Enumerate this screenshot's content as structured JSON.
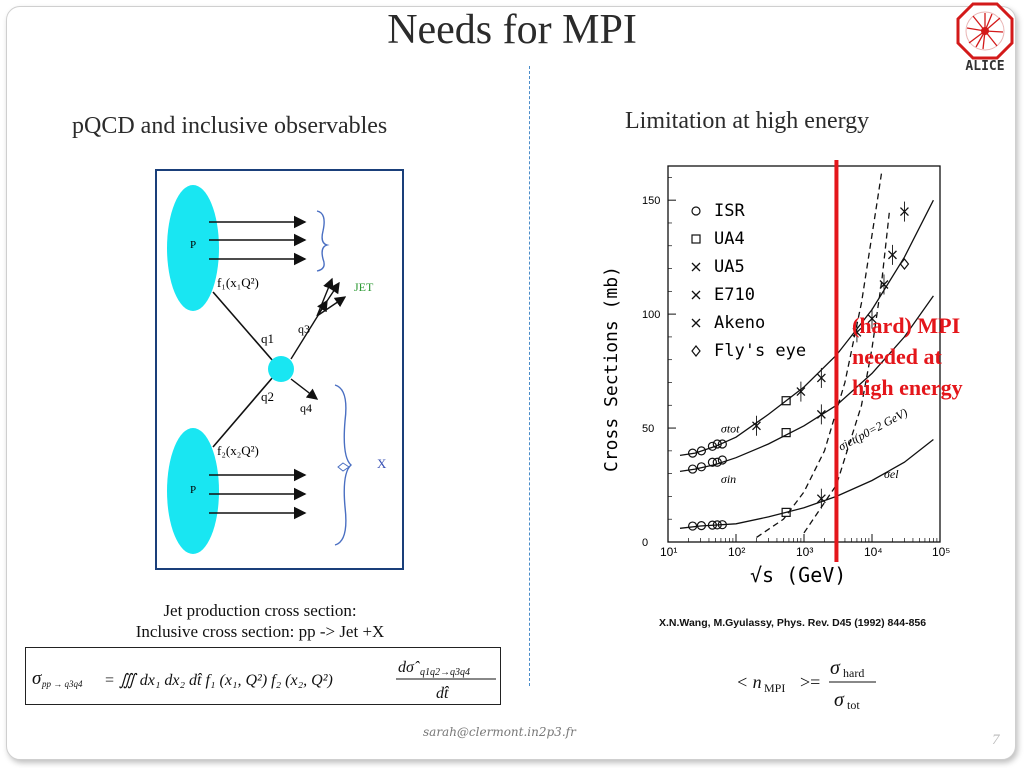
{
  "slide": {
    "title": "Needs for MPI",
    "logo_text": "ALICE",
    "left_heading": "pQCD and inclusive observables",
    "right_heading": "Limitation at high energy",
    "caption_line1": "Jet production cross section:",
    "caption_line2": "Inclusive cross section: pp -> Jet +X",
    "reference": "X.N.Wang, M.Gyulassy, Phys. Rev. D45 (1992) 844-856",
    "mpi_note": [
      "(hard) MPI",
      "needed at",
      "high energy"
    ],
    "email": "sarah@clermont.in2p3.fr",
    "page_number": "7",
    "accent_color": "#e4161b",
    "frame_color": "#1a3f7a"
  },
  "diagram": {
    "proton_label": "P",
    "pdf1": "f₁(x₁Q²)",
    "pdf2": "f₂(x₂Q²)",
    "q1": "q1",
    "q2": "q2",
    "q3": "q3",
    "q4": "q4",
    "jet": "JET",
    "x": "X"
  },
  "formula": {
    "sigma_sub": "pp → q3q4",
    "body": "= ∭ dx₁ dx₂ dt̂ f₁ (x₁, Q²) f₂ (x₂, Q²)",
    "num": "dσ̂",
    "num_sub": "q1q2→q3q4",
    "den": "dt̂"
  },
  "nmpi": {
    "lhs": "< n",
    "lhs_sub": "MPI",
    "rel": ">=",
    "num_sub": "hard",
    "den_sub": "tot"
  },
  "chart_data": {
    "type": "scatter",
    "xlabel": "√s  (GeV)",
    "ylabel": "Cross Sections (mb)",
    "xscale": "log",
    "xlim": [
      10,
      100000
    ],
    "ylim": [
      0,
      165
    ],
    "xticks": [
      "10¹",
      "10²",
      "10³",
      "10⁴",
      "10⁵"
    ],
    "yticks": [
      "0",
      "50",
      "100",
      "150"
    ],
    "legend": [
      "ISR",
      "UA4",
      "UA5",
      "E710",
      "Akeno",
      "Fly's eye"
    ],
    "curve_labels": [
      "σtot",
      "σin",
      "σel",
      "σjet(p0=2 GeV)"
    ],
    "series": [
      {
        "name": "ISR",
        "x": [
          23,
          31,
          45,
          53,
          63
        ],
        "y": [
          39,
          40,
          42,
          43,
          43
        ]
      },
      {
        "name": "ISR",
        "x": [
          23,
          31,
          45,
          53,
          63
        ],
        "y": [
          32,
          33,
          35,
          35,
          36
        ]
      },
      {
        "name": "ISR",
        "x": [
          23,
          31,
          45,
          53,
          63
        ],
        "y": [
          7,
          7.2,
          7.4,
          7.5,
          7.6
        ]
      },
      {
        "name": "UA4",
        "x": [
          546,
          546,
          546
        ],
        "y": [
          62,
          48,
          13
        ]
      },
      {
        "name": "UA5",
        "x": [
          200,
          900
        ],
        "y": [
          51,
          66
        ]
      },
      {
        "name": "E710",
        "x": [
          1800,
          1800,
          1800
        ],
        "y": [
          72,
          56,
          19
        ]
      },
      {
        "name": "Akeno",
        "x": [
          6000,
          10000,
          15000,
          20000,
          30000
        ],
        "y": [
          92,
          98,
          113,
          126,
          145
        ]
      },
      {
        "name": "Fly's eye",
        "x": [
          30000
        ],
        "y": [
          122
        ]
      }
    ],
    "mpi_line_x": 3000
  }
}
